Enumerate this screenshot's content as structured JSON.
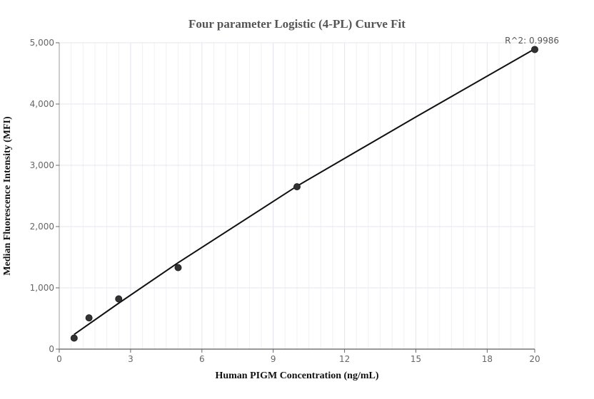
{
  "chart_data": {
    "type": "scatter",
    "title": "Four parameter Logistic (4-PL) Curve Fit",
    "xlabel": "Human PIGM Concentration (ng/mL)",
    "ylabel": "Median Fluorescence Intensity (MFI)",
    "xlim": [
      0,
      20
    ],
    "ylim": [
      0,
      5000
    ],
    "x_ticks": [
      0,
      3,
      6,
      9,
      12,
      15,
      18,
      20
    ],
    "x_tick_labels": [
      "0",
      "3",
      "6",
      "9",
      "12",
      "15",
      "18",
      "20"
    ],
    "y_ticks": [
      0,
      1000,
      2000,
      3000,
      4000,
      5000
    ],
    "y_tick_labels": [
      "0",
      "1,000",
      "2,000",
      "3,000",
      "4,000",
      "5,000"
    ],
    "grid": true,
    "series": [
      {
        "kind": "points",
        "x": [
          0.625,
          1.25,
          2.5,
          5,
          10,
          20
        ],
        "y": [
          180,
          510,
          820,
          1330,
          2650,
          4890
        ]
      },
      {
        "kind": "fit-line",
        "x": [
          0.625,
          2.5,
          5,
          10,
          15,
          20
        ],
        "y": [
          240,
          750,
          1410,
          2660,
          3790,
          4900
        ]
      }
    ],
    "annotation": "R^2: 0.9986",
    "colors": {
      "points": "#333333",
      "line": "#111111",
      "grid": "#e6e6ef",
      "axis": "#333333"
    }
  }
}
